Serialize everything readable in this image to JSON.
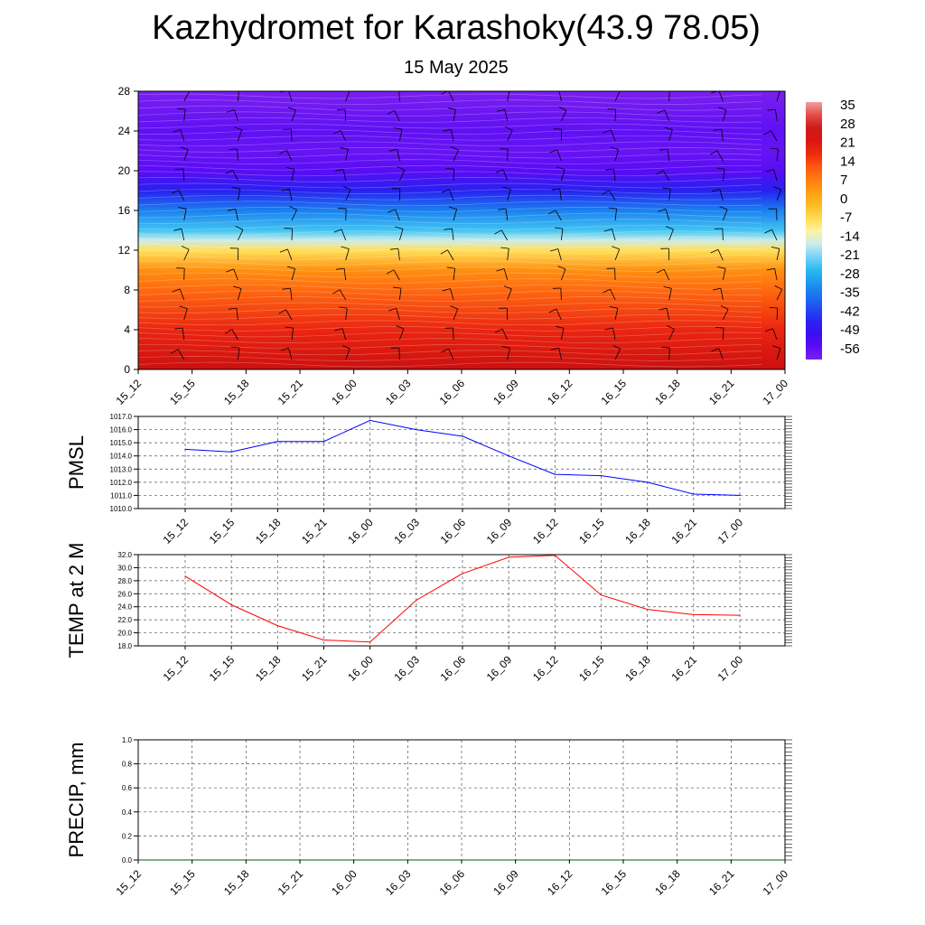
{
  "header": {
    "title": "Kazhydromet for Karashoky(43.9 78.05)",
    "subtitle": "15 May 2025"
  },
  "chart_data": [
    {
      "type": "heatmap",
      "name": "vertical-cross-section",
      "x_ticks": [
        "15_12",
        "15_15",
        "15_18",
        "15_21",
        "16_00",
        "16_03",
        "16_06",
        "16_09",
        "16_12",
        "16_15",
        "16_18",
        "16_21",
        "17_00"
      ],
      "y_ticks": [
        0,
        4,
        8,
        12,
        16,
        20,
        24,
        28
      ],
      "ylim": [
        0,
        28
      ],
      "colorbar": {
        "labels": [
          "35",
          "28",
          "21",
          "14",
          "7",
          "0",
          "-7",
          "-14",
          "-21",
          "-28",
          "-35",
          "-42",
          "-49",
          "-56"
        ],
        "range": [
          -60,
          38
        ]
      },
      "temperature_profile": [
        {
          "level": 0,
          "value": 27
        },
        {
          "level": 4,
          "value": 19
        },
        {
          "level": 8,
          "value": 11
        },
        {
          "level": 10,
          "value": 6
        },
        {
          "level": 12,
          "value": -7
        },
        {
          "level": 13,
          "value": -16
        },
        {
          "level": 14,
          "value": -24
        },
        {
          "level": 16,
          "value": -34
        },
        {
          "level": 18,
          "value": -46
        },
        {
          "level": 20,
          "value": -55
        },
        {
          "level": 22,
          "value": -57
        },
        {
          "level": 24,
          "value": -56
        },
        {
          "level": 28,
          "value": -60
        }
      ],
      "wind_barb_levels": [
        1,
        3,
        5,
        7,
        9,
        11,
        13,
        15,
        17,
        19,
        21,
        23,
        25,
        27
      ],
      "colors": {
        "low": "#7b24f0",
        "mid": "#fff4a0",
        "high": "#d91010"
      }
    },
    {
      "type": "line",
      "name": "pmsl",
      "ylabel": "PMSL",
      "x": [
        "15_12",
        "15_15",
        "15_18",
        "15_21",
        "16_00",
        "16_03",
        "16_06",
        "16_09",
        "16_12",
        "16_15",
        "16_18",
        "16_21",
        "17_00"
      ],
      "y_ticks": [
        "1010.0",
        "1011.0",
        "1012.0",
        "1013.0",
        "1014.0",
        "1015.0",
        "1016.0",
        "1017.0"
      ],
      "ylim": [
        1010,
        1017
      ],
      "values": [
        1014.5,
        1014.3,
        1015.1,
        1015.1,
        1016.7,
        1016.0,
        1015.5,
        1014.0,
        1012.6,
        1012.5,
        1012.0,
        1011.1,
        1011.0
      ],
      "color": "#0000ff"
    },
    {
      "type": "line",
      "name": "temp2m",
      "ylabel": "TEMP at 2 M",
      "x": [
        "15_12",
        "15_15",
        "15_18",
        "15_21",
        "16_00",
        "16_03",
        "16_06",
        "16_09",
        "16_12",
        "16_15",
        "16_18",
        "16_21",
        "17_00"
      ],
      "y_ticks": [
        "18.0",
        "20.0",
        "22.0",
        "24.0",
        "26.0",
        "28.0",
        "30.0",
        "32.0"
      ],
      "ylim": [
        18,
        32
      ],
      "values": [
        28.7,
        24.3,
        21.1,
        18.9,
        18.6,
        25.0,
        29.1,
        31.6,
        31.9,
        25.8,
        23.6,
        22.8,
        22.7
      ],
      "color": "#ff0000"
    },
    {
      "type": "line",
      "name": "precip",
      "ylabel": "PRECIP, mm",
      "x": [
        "15_12",
        "15_15",
        "15_18",
        "15_21",
        "16_00",
        "16_03",
        "16_06",
        "16_09",
        "16_12",
        "16_15",
        "16_18",
        "16_21",
        "17_00"
      ],
      "y_ticks": [
        "0.0",
        "0.2",
        "0.4",
        "0.6",
        "0.8",
        "1.0"
      ],
      "ylim": [
        0,
        1
      ],
      "values": [
        0,
        0,
        0,
        0,
        0,
        0,
        0,
        0,
        0,
        0,
        0,
        0,
        0
      ],
      "color": "#006400"
    }
  ]
}
